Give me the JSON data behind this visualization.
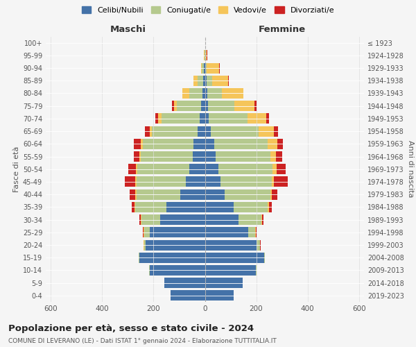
{
  "age_groups": [
    "0-4",
    "5-9",
    "10-14",
    "15-19",
    "20-24",
    "25-29",
    "30-34",
    "35-39",
    "40-44",
    "45-49",
    "50-54",
    "55-59",
    "60-64",
    "65-69",
    "70-74",
    "75-79",
    "80-84",
    "85-89",
    "90-94",
    "95-99",
    "100+"
  ],
  "birth_years": [
    "2019-2023",
    "2014-2018",
    "2009-2013",
    "2004-2008",
    "1999-2003",
    "1994-1998",
    "1989-1993",
    "1984-1988",
    "1979-1983",
    "1974-1978",
    "1969-1973",
    "1964-1968",
    "1959-1963",
    "1954-1958",
    "1949-1953",
    "1944-1948",
    "1939-1943",
    "1934-1938",
    "1929-1933",
    "1924-1928",
    "≤ 1923"
  ],
  "maschi": {
    "celibi": [
      135,
      158,
      215,
      255,
      230,
      215,
      175,
      150,
      95,
      75,
      62,
      48,
      45,
      28,
      20,
      14,
      10,
      7,
      3,
      0,
      0
    ],
    "coniugati": [
      0,
      0,
      2,
      2,
      6,
      22,
      72,
      122,
      172,
      192,
      202,
      202,
      198,
      178,
      148,
      95,
      52,
      22,
      8,
      2,
      0
    ],
    "vedovi": [
      0,
      0,
      0,
      0,
      2,
      2,
      2,
      2,
      5,
      5,
      5,
      5,
      8,
      10,
      15,
      12,
      25,
      15,
      5,
      2,
      0
    ],
    "divorziati": [
      0,
      0,
      0,
      0,
      2,
      2,
      5,
      12,
      22,
      40,
      30,
      22,
      25,
      18,
      10,
      8,
      0,
      0,
      0,
      0,
      0
    ]
  },
  "femmine": {
    "nubili": [
      112,
      148,
      198,
      232,
      202,
      168,
      132,
      112,
      78,
      62,
      52,
      42,
      36,
      22,
      15,
      12,
      9,
      7,
      3,
      0,
      0
    ],
    "coniugate": [
      0,
      0,
      2,
      2,
      12,
      28,
      88,
      132,
      178,
      198,
      212,
      212,
      208,
      188,
      152,
      102,
      58,
      22,
      5,
      0,
      0
    ],
    "vedove": [
      0,
      0,
      0,
      0,
      2,
      2,
      2,
      5,
      5,
      10,
      15,
      22,
      38,
      58,
      72,
      78,
      82,
      62,
      48,
      8,
      2
    ],
    "divorziate": [
      0,
      0,
      0,
      0,
      2,
      2,
      5,
      12,
      20,
      52,
      35,
      25,
      22,
      18,
      12,
      8,
      2,
      2,
      2,
      2,
      0
    ]
  },
  "colors": {
    "celibi": "#4472a8",
    "coniugati": "#b5c98e",
    "vedovi": "#f5c55a",
    "divorziati": "#cc2222"
  },
  "legend_labels": [
    "Celibi/Nubili",
    "Coniugati/e",
    "Vedovi/e",
    "Divorziati/e"
  ],
  "title": "Popolazione per età, sesso e stato civile - 2024",
  "subtitle": "COMUNE DI LEVERANO (LE) - Dati ISTAT 1° gennaio 2024 - Elaborazione TUTTITALIA.IT",
  "xlabel_left": "Maschi",
  "xlabel_right": "Femmine",
  "ylabel_left": "Fasce di età",
  "ylabel_right": "Anni di nascita",
  "xlim": 620,
  "background_color": "#f5f5f5"
}
